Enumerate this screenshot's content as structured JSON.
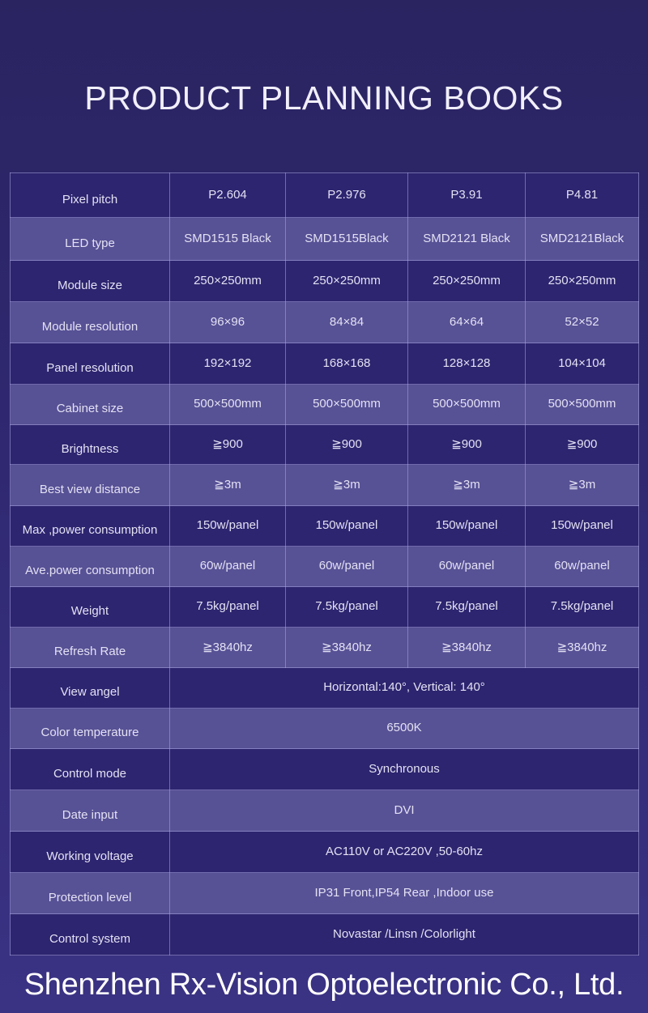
{
  "title": "PRODUCT PLANNING BOOKS",
  "watermark": "Shenzhen Rx-Vision Optoelectronic Co., Ltd.",
  "colors": {
    "row_dark": "#2d256f",
    "row_light": "#575195",
    "background": "#2f2870"
  },
  "rows": [
    {
      "label": "Pixel pitch",
      "values": [
        "P2.604",
        "P2.976",
        "P3.91",
        "P4.81"
      ]
    },
    {
      "label": "LED type",
      "values": [
        "SMD1515 Black",
        "SMD1515Black",
        "SMD2121 Black",
        "SMD2121Black"
      ]
    },
    {
      "label": "Module size",
      "values": [
        "250×250mm",
        "250×250mm",
        "250×250mm",
        "250×250mm"
      ]
    },
    {
      "label": "Module resolution",
      "values": [
        "96×96",
        "84×84",
        "64×64",
        "52×52"
      ]
    },
    {
      "label": "Panel resolution",
      "values": [
        "192×192",
        "168×168",
        "128×128",
        "104×104"
      ]
    },
    {
      "label": "Cabinet size",
      "values": [
        "500×500mm",
        "500×500mm",
        "500×500mm",
        "500×500mm"
      ]
    },
    {
      "label": "Brightness",
      "values": [
        "≧900",
        "≧900",
        "≧900",
        "≧900"
      ]
    },
    {
      "label": "Best view distance",
      "values": [
        "≧3m",
        "≧3m",
        "≧3m",
        "≧3m"
      ]
    },
    {
      "label": "Max ,power consumption",
      "values": [
        "150w/panel",
        "150w/panel",
        "150w/panel",
        "150w/panel"
      ]
    },
    {
      "label": "Ave.power consumption",
      "values": [
        "60w/panel",
        "60w/panel",
        "60w/panel",
        "60w/panel"
      ]
    },
    {
      "label": "Weight",
      "values": [
        "7.5kg/panel",
        "7.5kg/panel",
        "7.5kg/panel",
        "7.5kg/panel"
      ]
    },
    {
      "label": "Refresh Rate",
      "values": [
        "≧3840hz",
        "≧3840hz",
        "≧3840hz",
        "≧3840hz"
      ]
    },
    {
      "label": "View angel",
      "value": "Horizontal:140°, Vertical: 140°"
    },
    {
      "label": "Color temperature",
      "value": "6500K"
    },
    {
      "label": "Control mode",
      "value": "Synchronous"
    },
    {
      "label": "Date input",
      "value": "DVI"
    },
    {
      "label": "Working voltage",
      "value": "AC110V or AC220V ,50-60hz"
    },
    {
      "label": "Protection level",
      "value": "IP31 Front,IP54 Rear ,Indoor use"
    },
    {
      "label": "Control system",
      "value": "Novastar /Linsn /Colorlight"
    }
  ]
}
